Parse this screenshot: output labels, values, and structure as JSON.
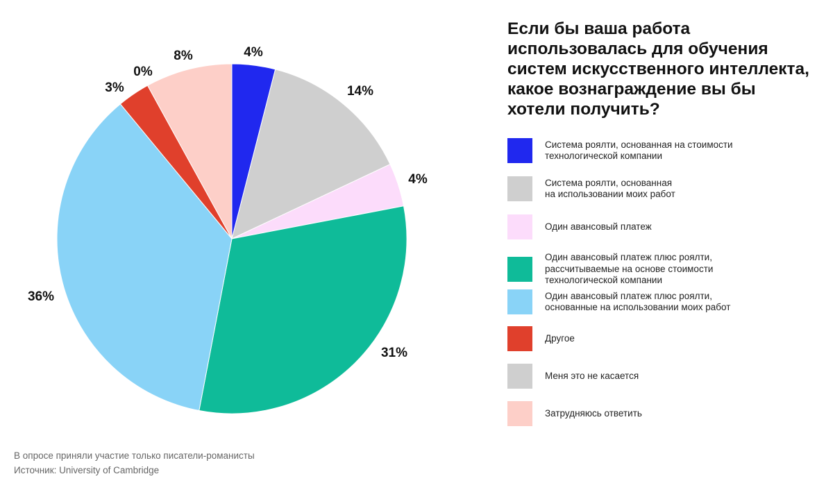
{
  "chart_data": {
    "type": "pie",
    "title": "Если бы ваша работа использовалась для обучения систем искусственного интеллекта, какое вознаграждение вы бы хотели получить?",
    "legend_position": "right",
    "slices": [
      {
        "label": "Система роялти, основанная на стоимости\nтехнологической компании",
        "value": 4,
        "display": "4%",
        "color": "#2028ef"
      },
      {
        "label": "Система роялти, основанная\nна использовании моих работ",
        "value": 14,
        "display": "14%",
        "color": "#cfcfcf"
      },
      {
        "label": "Один авансовый платеж",
        "value": 4,
        "display": "4%",
        "color": "#fcdcfb"
      },
      {
        "label": "Один авансовый платеж плюс роялти,\nрассчитываемые на основе стоимости\nтехнологической компании",
        "value": 31,
        "display": "31%",
        "color": "#0fbb99"
      },
      {
        "label": "Один авансовый платеж плюс роялти,\nоснованные на использовании моих работ",
        "value": 36,
        "display": "36%",
        "color": "#89d3f7"
      },
      {
        "label": "Другое",
        "value": 3,
        "display": "3%",
        "color": "#e0402c"
      },
      {
        "label": "Меня это не касается",
        "value": 0,
        "display": "0%",
        "color": "#cfcfcf"
      },
      {
        "label": "Затрудняюсь ответить",
        "value": 8,
        "display": "8%",
        "color": "#fdcfc8"
      }
    ]
  },
  "footnotes": {
    "note": "В опросе приняли участие только писатели-романисты",
    "source": "Источник: University of Cambridge"
  }
}
